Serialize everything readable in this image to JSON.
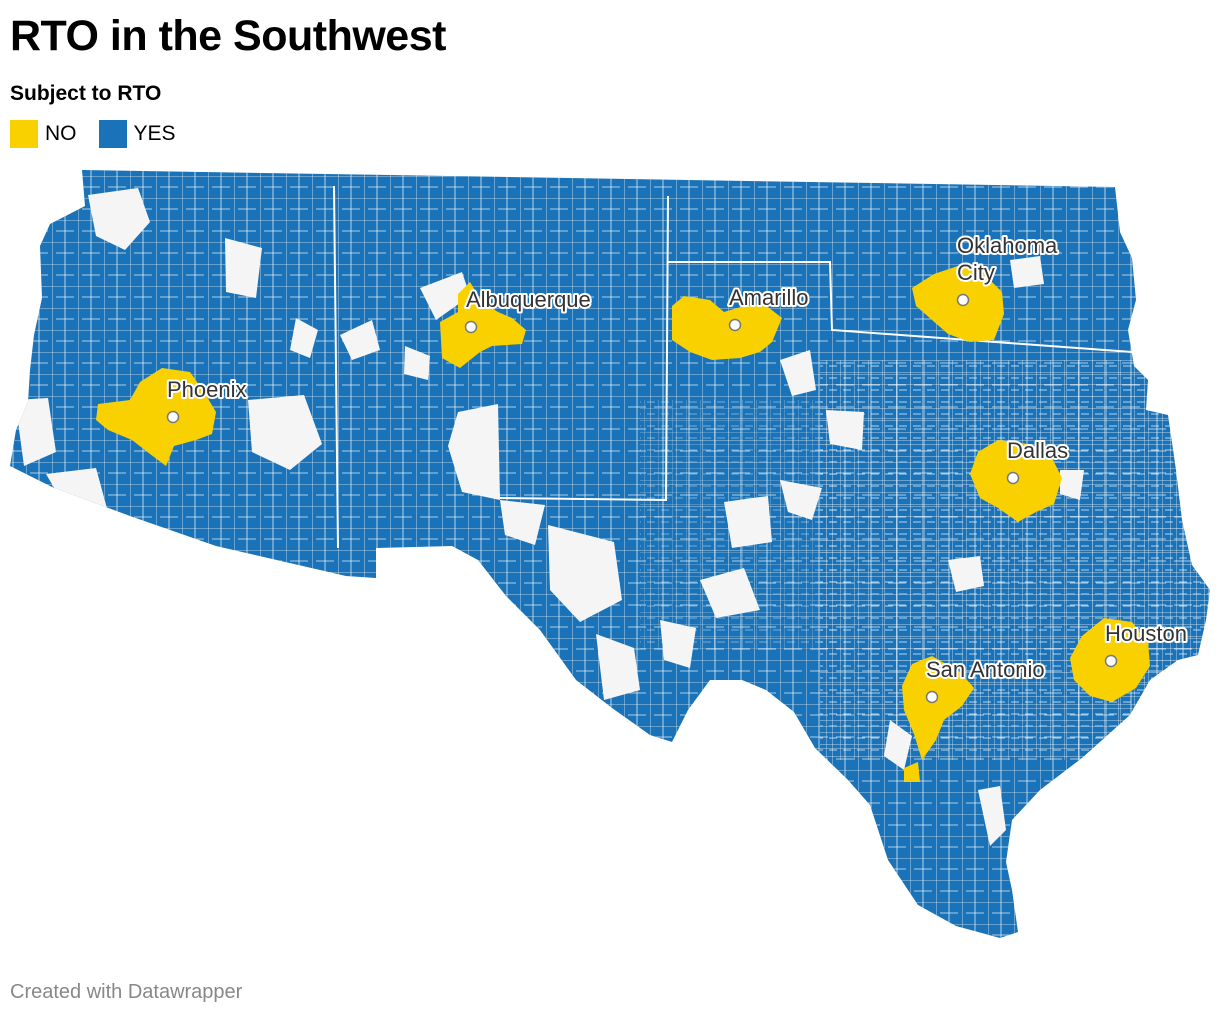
{
  "title": "RTO in the Southwest",
  "legend": {
    "title": "Subject to RTO",
    "items": [
      {
        "label": "NO",
        "color": "#f9d100"
      },
      {
        "label": "YES",
        "color": "#1a73b8"
      }
    ]
  },
  "map": {
    "colors": {
      "no": "#f9d100",
      "yes": "#1a73b8",
      "nodata": "#f5f5f5",
      "border": "#ffffff"
    },
    "cities": [
      {
        "name": "Phoenix"
      },
      {
        "name": "Albuquerque"
      },
      {
        "name": "Amarillo"
      },
      {
        "name_line1": "Oklahoma",
        "name_line2": "City"
      },
      {
        "name": "Dallas"
      },
      {
        "name": "San Antonio"
      },
      {
        "name": "Houston"
      }
    ]
  },
  "footer": "Created with Datawrapper"
}
